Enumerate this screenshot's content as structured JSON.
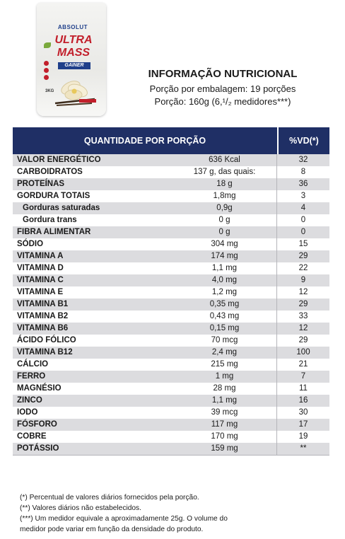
{
  "product": {
    "brand": "ABSOLUT",
    "name_line1": "ULTRA",
    "name_line2": "MASS",
    "name_line3": "GAINER",
    "weight": "3KG"
  },
  "heading": {
    "title": "INFORMAÇÃO NUTRICIONAL",
    "servings_per_package": "Porção por embalagem: 19 porções",
    "serving_size": "Porção: 160g (6,¹/₂ medidores***)"
  },
  "table": {
    "header_left": "QUANTIDADE POR PORÇÃO",
    "header_right": "%VD(*)",
    "rows": [
      {
        "name": "VALOR ENERGÉTICO",
        "qty": "636 Kcal",
        "vd": "32"
      },
      {
        "name": "CARBOIDRATOS",
        "qty": "137 g, das quais:",
        "vd": "8"
      },
      {
        "name": "PROTEÍNAS",
        "qty": "18 g",
        "vd": "36"
      },
      {
        "name": "GORDURA TOTAIS",
        "qty": "1,8mg",
        "vd": "3"
      },
      {
        "name": "Gorduras saturadas",
        "qty": "0,9g",
        "vd": "4"
      },
      {
        "name": "Gordura trans",
        "qty": "0 g",
        "vd": "0"
      },
      {
        "name": "FIBRA ALIMENTAR",
        "qty": "0 g",
        "vd": "0"
      },
      {
        "name": "SÓDIO",
        "qty": "304 mg",
        "vd": "15"
      },
      {
        "name": "VITAMINA A",
        "qty": "174 mg",
        "vd": "29"
      },
      {
        "name": "VITAMINA D",
        "qty": "1,1 mg",
        "vd": "22"
      },
      {
        "name": "VITAMINA C",
        "qty": "4,0 mg",
        "vd": "9"
      },
      {
        "name": "VITAMINA E",
        "qty": "1,2 mg",
        "vd": "12"
      },
      {
        "name": "VITAMINA B1",
        "qty": "0,35 mg",
        "vd": "29"
      },
      {
        "name": "VITAMINA B2",
        "qty": "0,43 mg",
        "vd": "33"
      },
      {
        "name": "VITAMINA B6",
        "qty": "0,15 mg",
        "vd": "12"
      },
      {
        "name": "ÁCIDO FÓLICO",
        "qty": "70 mcg",
        "vd": "29"
      },
      {
        "name": "VITAMINA B12",
        "qty": "2,4 mg",
        "vd": "100"
      },
      {
        "name": "CÁLCIO",
        "qty": "215 mg",
        "vd": "21"
      },
      {
        "name": "FERRO",
        "qty": "1 mg",
        "vd": "7"
      },
      {
        "name": "MAGNÉSIO",
        "qty": "28 mg",
        "vd": "11"
      },
      {
        "name": "ZINCO",
        "qty": "1,1 mg",
        "vd": "16"
      },
      {
        "name": "IODO",
        "qty": "39 mcg",
        "vd": "30"
      },
      {
        "name": "FÓSFORO",
        "qty": "117 mg",
        "vd": "17"
      },
      {
        "name": "COBRE",
        "qty": "170 mg",
        "vd": "19"
      },
      {
        "name": "POTÁSSIO",
        "qty": "159 mg",
        "vd": "**"
      }
    ]
  },
  "notes": {
    "n1": "(*) Percentual de valores diários fornecidos pela porção.",
    "n2": "(**) Valores diários não estabelecidos.",
    "n3": "(***) Um medidor equivale a aproximadamente 25g. O volume do",
    "n4": "medidor pode variar em função da densidade do produto."
  },
  "colors": {
    "header_bg": "#1f2f65",
    "stripe": "#dcdcdf"
  }
}
